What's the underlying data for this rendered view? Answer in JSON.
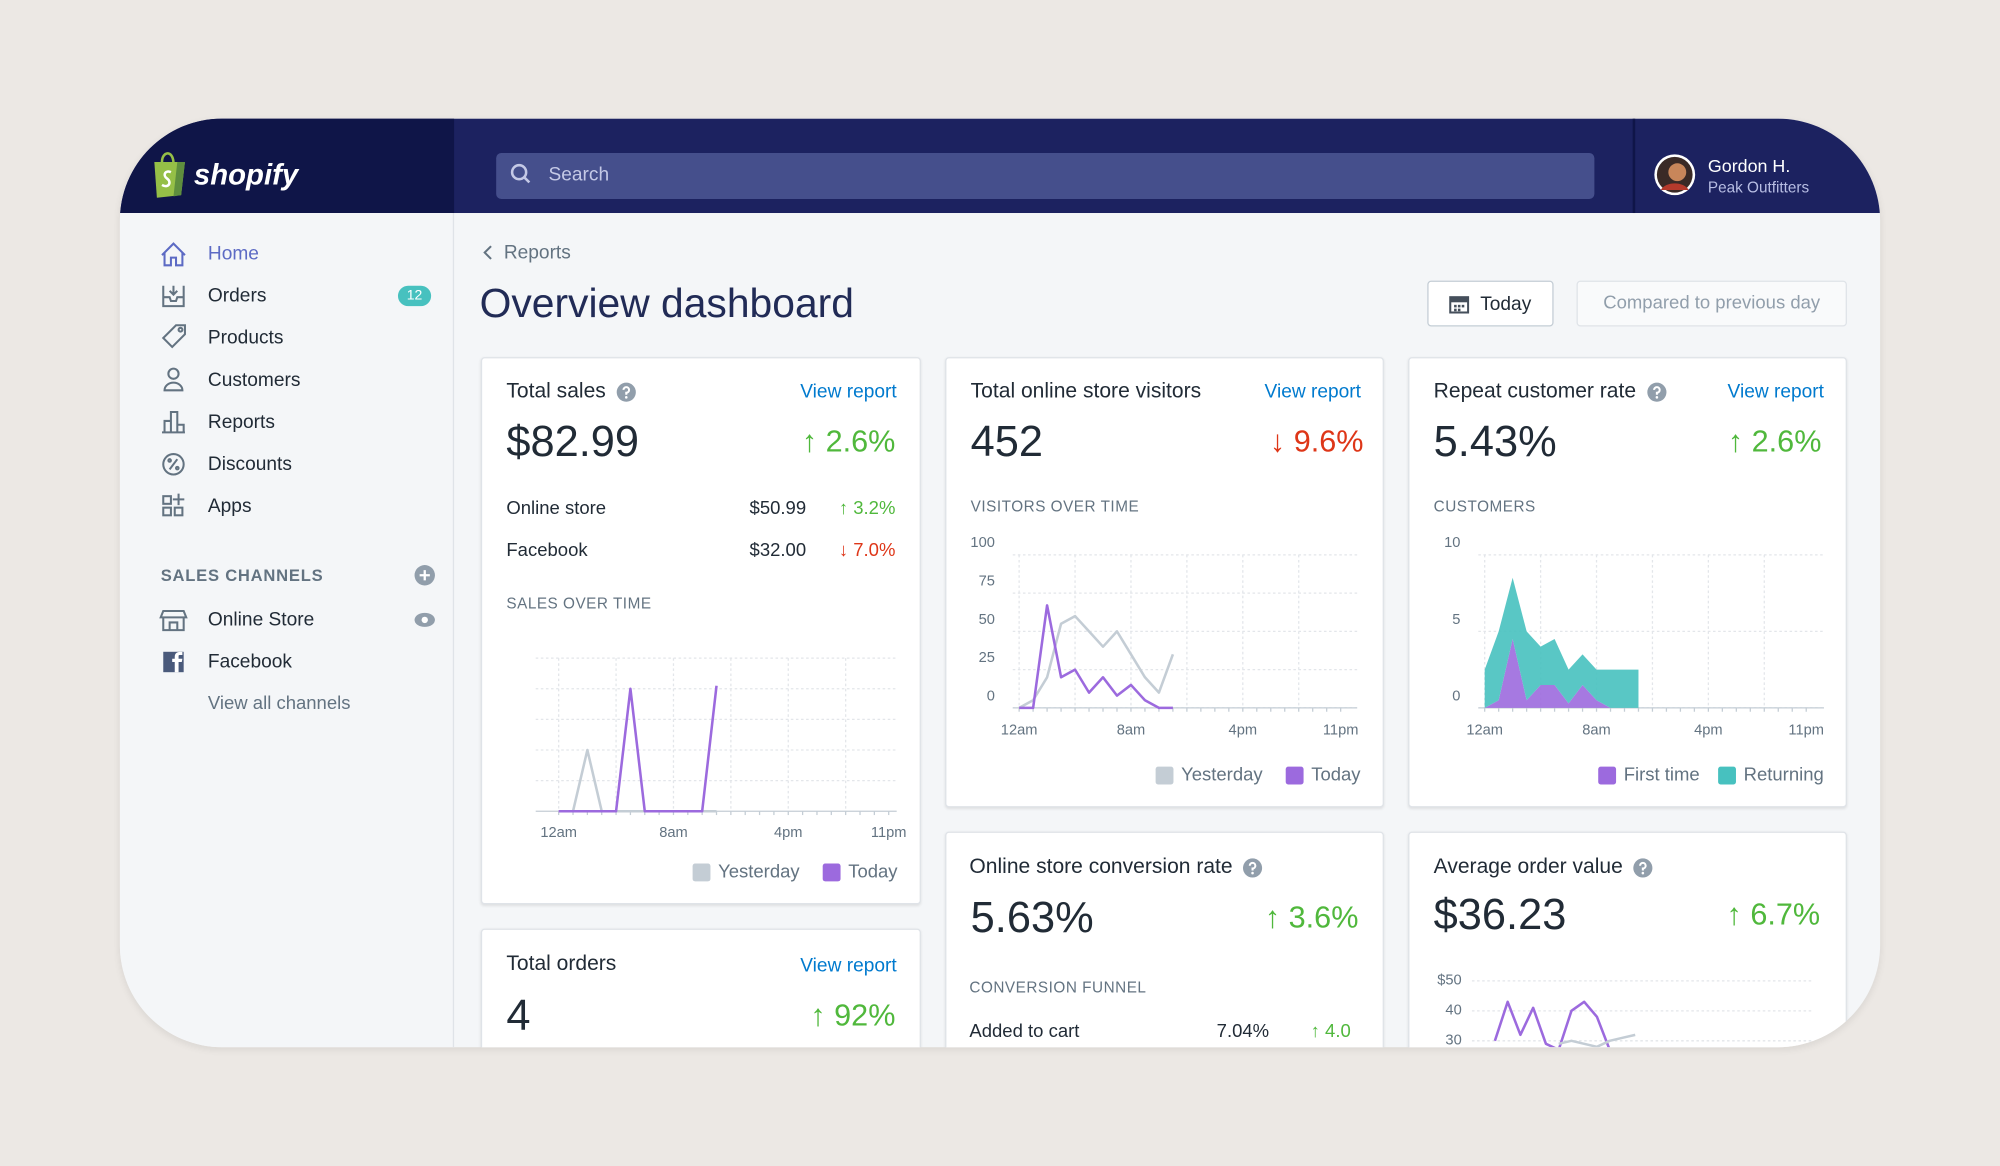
{
  "header": {
    "logo": "shopify",
    "search": "Search",
    "user": {
      "name": "Gordon H.",
      "store": "Peak Outfitters"
    }
  },
  "sidebar": {
    "nav": [
      {
        "label": "Home"
      },
      {
        "label": "Orders",
        "badge": 12
      },
      {
        "label": "Products"
      },
      {
        "label": "Customers"
      },
      {
        "label": "Reports"
      },
      {
        "label": "Discounts"
      },
      {
        "label": "Apps"
      }
    ],
    "sales_channels": {
      "title": "SALES CHANNELS",
      "items": [
        "Online Store",
        "Facebook"
      ],
      "view_all": "View all channels"
    }
  },
  "page": {
    "breadcrumb": "Reports",
    "title": "Overview dashboard",
    "date_button": "Today",
    "compare_button": "Compared to previous day"
  },
  "cards": {
    "total_sales": {
      "title": "Total sales",
      "link": "View report",
      "value": "$82.99",
      "change": "↑ 2.6%",
      "rows": [
        {
          "label": "Online store",
          "value": "$50.99",
          "change": "↑ 3.2%"
        },
        {
          "label": "Facebook",
          "value": "$32.00",
          "change": "↓ 7.0%"
        }
      ],
      "chart": {
        "type": "line",
        "title": "SALES OVER TIME",
        "categories": [
          "12am",
          null,
          null,
          null,
          null,
          null,
          null,
          null,
          "8am",
          null,
          null,
          null,
          null,
          null,
          null,
          null,
          "4pm",
          null,
          null,
          null,
          null,
          null,
          null,
          "11pm"
        ],
        "ylim": [
          0,
          100
        ],
        "series": [
          {
            "name": "Yesterday",
            "color": "#c4cdd5",
            "values": [
              0,
              0,
              40,
              0,
              0,
              0,
              0,
              0,
              0,
              0,
              0,
              0,
              null,
              null,
              null,
              null,
              null,
              null,
              null,
              null,
              null,
              null,
              null,
              null
            ]
          },
          {
            "name": "Today",
            "color": "#9c6ade",
            "values": [
              0,
              0,
              0,
              0,
              0,
              80,
              0,
              0,
              0,
              0,
              0,
              82,
              null,
              null,
              null,
              null,
              null,
              null,
              null,
              null,
              null,
              null,
              null,
              null
            ]
          }
        ]
      }
    },
    "visitors": {
      "title": "Total online store visitors",
      "link": "View report",
      "value": "452",
      "change": "↓ 9.6%",
      "chart": {
        "type": "line",
        "title": "VISITORS OVER TIME",
        "categories": [
          "12am",
          null,
          null,
          null,
          null,
          null,
          null,
          null,
          "8am",
          null,
          null,
          null,
          null,
          null,
          null,
          null,
          "4pm",
          null,
          null,
          null,
          null,
          null,
          null,
          "11pm"
        ],
        "ylim": [
          0,
          100
        ],
        "yticks": [
          0,
          25,
          50,
          75,
          100
        ],
        "series": [
          {
            "name": "Yesterday",
            "color": "#c4cdd5",
            "values": [
              0,
              5,
              20,
              55,
              60,
              50,
              40,
              50,
              35,
              20,
              10,
              35,
              null,
              null,
              null,
              null,
              null,
              null,
              null,
              null,
              null,
              null,
              null,
              null
            ]
          },
          {
            "name": "Today",
            "color": "#9c6ade",
            "values": [
              0,
              0,
              67,
              20,
              25,
              10,
              20,
              8,
              15,
              5,
              0,
              0,
              null,
              null,
              null,
              null,
              null,
              null,
              null,
              null,
              null,
              null,
              null,
              null
            ]
          }
        ]
      }
    },
    "repeat_rate": {
      "title": "Repeat customer rate",
      "link": "View report",
      "value": "5.43%",
      "change": "↑ 2.6%",
      "chart": {
        "type": "area",
        "stacked": true,
        "title": "CUSTOMERS",
        "categories": [
          "12am",
          null,
          null,
          null,
          null,
          null,
          null,
          null,
          "8am",
          null,
          null,
          null,
          null,
          null,
          null,
          null,
          "4pm",
          null,
          null,
          null,
          null,
          null,
          null,
          "11pm"
        ],
        "ylim": [
          0,
          10
        ],
        "yticks": [
          0,
          5,
          10
        ],
        "series": [
          {
            "name": "First time",
            "color": "#9c6ade",
            "values": [
              0,
              0.5,
              4.5,
              0.5,
              1.5,
              1.5,
              0.3,
              1.5,
              0.5,
              0,
              0,
              0,
              null,
              null,
              null,
              null,
              null,
              null,
              null,
              null,
              null,
              null,
              null,
              null
            ]
          },
          {
            "name": "Returning",
            "color": "#47c1bf",
            "values": [
              2.5,
              4.5,
              4,
              4.5,
              2.5,
              3,
              2.2,
              2,
              2,
              2.5,
              2.5,
              2.5,
              null,
              null,
              null,
              null,
              null,
              null,
              null,
              null,
              null,
              null,
              null,
              null
            ]
          }
        ]
      }
    },
    "total_orders": {
      "title": "Total orders",
      "link": "View report",
      "value": "4",
      "change": "↑ 92%"
    },
    "conversion": {
      "title": "Online store conversion rate",
      "value": "5.63%",
      "change": "↑ 3.6%",
      "funnel_title": "CONVERSION FUNNEL",
      "rows": [
        {
          "label": "Added to cart",
          "value": "7.04%",
          "change": "↑ 4.0"
        }
      ]
    },
    "average_order": {
      "title": "Average order value",
      "value": "$36.23",
      "change": "↑ 6.7%",
      "chart": {
        "type": "line",
        "ylim": [
          30,
          50
        ],
        "yticks": [
          {
            "value": 50,
            "label": "$50"
          },
          40,
          30
        ],
        "series": [
          {
            "color": "#9c6ade",
            "values": [
              30,
              43,
              32,
              41,
              29,
              27,
              40,
              43,
              38,
              27,
              null,
              null
            ]
          },
          {
            "color": "#c4cdd5",
            "values": [
              null,
              null,
              null,
              null,
              null,
              29,
              30,
              29,
              28,
              30,
              31,
              32
            ]
          }
        ]
      }
    }
  }
}
